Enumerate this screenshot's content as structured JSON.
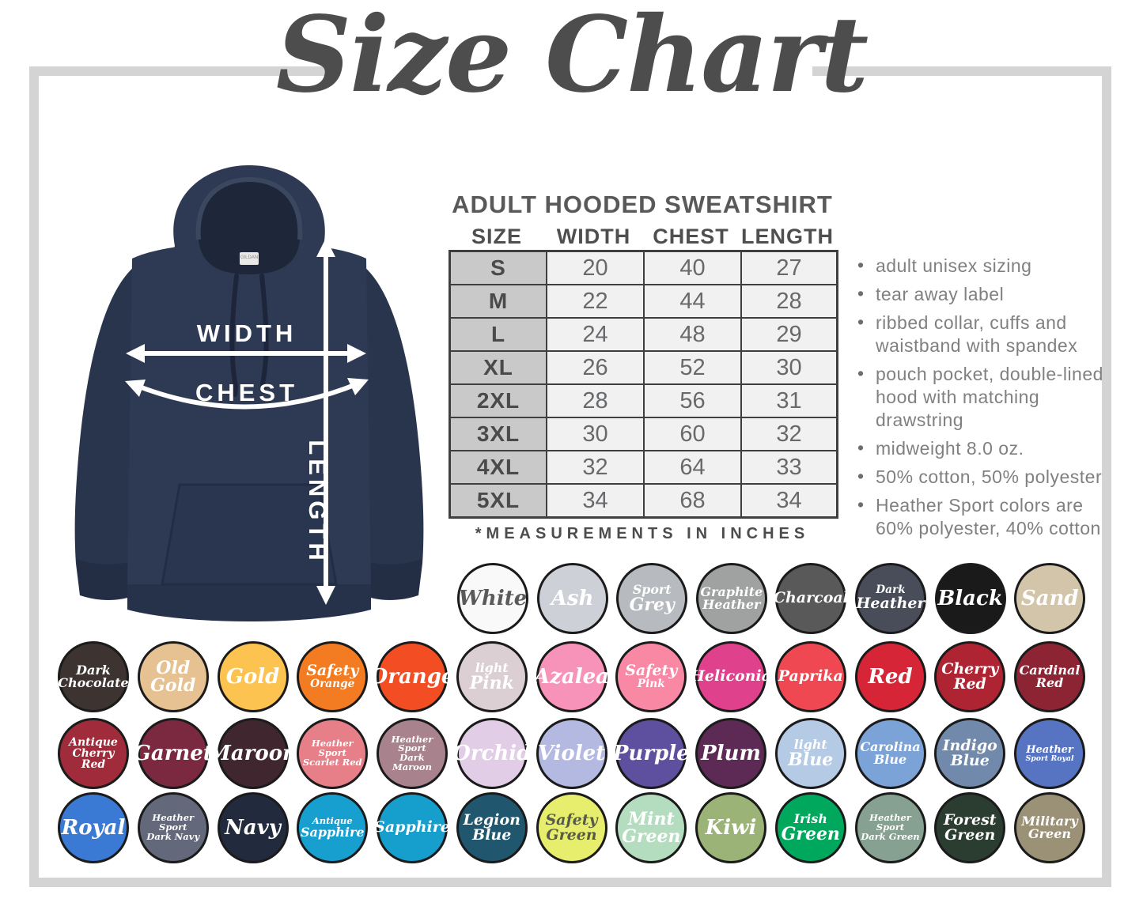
{
  "title": "Size Chart",
  "product": {
    "heading": "ADULT HOODED SWEATSHIRT",
    "note": "*MEASUREMENTS IN INCHES",
    "table": {
      "columns": [
        "SIZE",
        "WIDTH",
        "CHEST",
        "LENGTH"
      ],
      "rows": [
        [
          "S",
          "20",
          "40",
          "27"
        ],
        [
          "M",
          "22",
          "44",
          "28"
        ],
        [
          "L",
          "24",
          "48",
          "29"
        ],
        [
          "XL",
          "26",
          "52",
          "30"
        ],
        [
          "2XL",
          "28",
          "56",
          "31"
        ],
        [
          "3XL",
          "30",
          "60",
          "32"
        ],
        [
          "4XL",
          "32",
          "64",
          "33"
        ],
        [
          "5XL",
          "34",
          "68",
          "34"
        ]
      ]
    },
    "features": [
      "adult unisex sizing",
      "tear away label",
      "ribbed collar, cuffs and waistband with spandex",
      "pouch pocket, double-lined hood with matching drawstring",
      "midweight 8.0 oz.",
      "50% cotton, 50% polyester",
      "Heather Sport colors are 60% polyester, 40% cotton"
    ]
  },
  "diagram": {
    "width_label": "WIDTH",
    "chest_label": "CHEST",
    "length_label": "LENGTH",
    "tag": "GILDAN",
    "hoodie_color": "#2e3a53"
  },
  "swatch_rows": [
    [
      {
        "name": "White",
        "lines": [
          "White"
        ],
        "bg": "#f9f9f9",
        "fg": "#5a5a5a"
      },
      {
        "name": "Ash",
        "lines": [
          "Ash"
        ],
        "bg": "#cdd1d7",
        "fg": "#ffffff"
      },
      {
        "name": "Sport Grey",
        "lines": [
          "Sport",
          "Grey"
        ],
        "small": [
          0
        ],
        "bg": "#b7babf",
        "fg": "#ffffff"
      },
      {
        "name": "Graphite Heather",
        "lines": [
          "Graphite",
          "Heather"
        ],
        "bg": "#9fa2a1",
        "fg": "#ffffff"
      },
      {
        "name": "Charcoal",
        "lines": [
          "Charcoal"
        ],
        "bg": "#595959",
        "fg": "#ffffff"
      },
      {
        "name": "Dark Heather",
        "lines": [
          "Dark",
          "Heather"
        ],
        "small": [
          0
        ],
        "bg": "#484d59",
        "fg": "#ffffff"
      },
      {
        "name": "Black",
        "lines": [
          "Black"
        ],
        "bg": "#1a1a1a",
        "fg": "#ffffff"
      },
      {
        "name": "Sand",
        "lines": [
          "Sand"
        ],
        "bg": "#d3c5a9",
        "fg": "#ffffff"
      }
    ],
    [
      {
        "name": "Dark Chocolate",
        "lines": [
          "Dark",
          "Chocolate"
        ],
        "bg": "#3d3330",
        "fg": "#ffffff"
      },
      {
        "name": "Old Gold",
        "lines": [
          "Old",
          "Gold"
        ],
        "bg": "#e6c192",
        "fg": "#ffffff"
      },
      {
        "name": "Gold",
        "lines": [
          "Gold"
        ],
        "bg": "#fcc350",
        "fg": "#ffffff"
      },
      {
        "name": "Safety Orange",
        "lines": [
          "Safety",
          "Orange"
        ],
        "small": [
          1
        ],
        "bg": "#f37b21",
        "fg": "#ffffff"
      },
      {
        "name": "Orange",
        "lines": [
          "Orange"
        ],
        "bg": "#f34e23",
        "fg": "#ffffff"
      },
      {
        "name": "Light Pink",
        "lines": [
          "light",
          "Pink"
        ],
        "small": [
          0
        ],
        "bg": "#dccfd3",
        "fg": "#ffffff"
      },
      {
        "name": "Azalea",
        "lines": [
          "Azalea"
        ],
        "bg": "#f793b9",
        "fg": "#ffffff"
      },
      {
        "name": "Safety Pink",
        "lines": [
          "Safety",
          "Pink"
        ],
        "small": [
          1
        ],
        "bg": "#f988a5",
        "fg": "#ffffff"
      },
      {
        "name": "Heliconia",
        "lines": [
          "Heliconia"
        ],
        "bg": "#e0418d",
        "fg": "#ffffff"
      },
      {
        "name": "Paprika",
        "lines": [
          "Paprika"
        ],
        "bg": "#f04852",
        "fg": "#ffffff"
      },
      {
        "name": "Red",
        "lines": [
          "Red"
        ],
        "bg": "#d52536",
        "fg": "#ffffff"
      },
      {
        "name": "Cherry Red",
        "lines": [
          "Cherry",
          "Red"
        ],
        "bg": "#af2432",
        "fg": "#ffffff"
      },
      {
        "name": "Cardinal Red",
        "lines": [
          "Cardinal",
          "Red"
        ],
        "bg": "#8d2434",
        "fg": "#ffffff"
      }
    ],
    [
      {
        "name": "Antique Cherry Red",
        "lines": [
          "Antique",
          "Cherry",
          "Red"
        ],
        "bg": "#a02c3b",
        "fg": "#ffffff"
      },
      {
        "name": "Garnet",
        "lines": [
          "Garnet"
        ],
        "bg": "#7b2940",
        "fg": "#ffffff"
      },
      {
        "name": "Maroon",
        "lines": [
          "Maroon"
        ],
        "bg": "#40262e",
        "fg": "#ffffff"
      },
      {
        "name": "Heather Sport Scarlet Red",
        "lines": [
          "Heather Sport",
          "Scarlet Red"
        ],
        "bg": "#e67f88",
        "fg": "#ffffff"
      },
      {
        "name": "Heather Sport Dark Maroon",
        "lines": [
          "Heather Sport",
          "Dark Maroon"
        ],
        "bg": "#a8838d",
        "fg": "#ffffff"
      },
      {
        "name": "Orchid",
        "lines": [
          "Orchid"
        ],
        "bg": "#e2cde6",
        "fg": "#ffffff"
      },
      {
        "name": "Violet",
        "lines": [
          "Violet"
        ],
        "bg": "#b3b9e0",
        "fg": "#ffffff"
      },
      {
        "name": "Purple",
        "lines": [
          "Purple"
        ],
        "bg": "#5e4f9f",
        "fg": "#ffffff"
      },
      {
        "name": "Plum",
        "lines": [
          "Plum"
        ],
        "bg": "#5c2a54",
        "fg": "#ffffff"
      },
      {
        "name": "Light Blue",
        "lines": [
          "light",
          "Blue"
        ],
        "small": [
          0
        ],
        "bg": "#b5cbe5",
        "fg": "#ffffff"
      },
      {
        "name": "Carolina Blue",
        "lines": [
          "Carolina",
          "Blue"
        ],
        "bg": "#7ba3d8",
        "fg": "#ffffff"
      },
      {
        "name": "Indigo Blue",
        "lines": [
          "Indigo",
          "Blue"
        ],
        "bg": "#7189ab",
        "fg": "#ffffff"
      },
      {
        "name": "Heather Sport Royal",
        "lines": [
          "Heather",
          "Sport Royal"
        ],
        "small": [
          1
        ],
        "bg": "#5774c2",
        "fg": "#ffffff"
      }
    ],
    [
      {
        "name": "Royal",
        "lines": [
          "Royal"
        ],
        "bg": "#3a79d4",
        "fg": "#ffffff"
      },
      {
        "name": "Heather Sport Dark Navy",
        "lines": [
          "Heather Sport",
          "Dark Navy"
        ],
        "bg": "#63687b",
        "fg": "#ffffff"
      },
      {
        "name": "Navy",
        "lines": [
          "Navy"
        ],
        "bg": "#222a3d",
        "fg": "#ffffff"
      },
      {
        "name": "Antique Sapphire",
        "lines": [
          "Antique",
          "Sapphire"
        ],
        "small": [
          0
        ],
        "bg": "#17a0cf",
        "fg": "#ffffff"
      },
      {
        "name": "Sapphire",
        "lines": [
          "Sapphire"
        ],
        "bg": "#169ecc",
        "fg": "#ffffff"
      },
      {
        "name": "Legion Blue",
        "lines": [
          "Legion",
          "Blue"
        ],
        "bg": "#20576f",
        "fg": "#ffffff"
      },
      {
        "name": "Safety Green",
        "lines": [
          "Safety",
          "Green"
        ],
        "bg": "#e7ee6e",
        "fg": "#575a48"
      },
      {
        "name": "Mint Green",
        "lines": [
          "Mint",
          "Green"
        ],
        "bg": "#b4ddc0",
        "fg": "#ffffff"
      },
      {
        "name": "Kiwi",
        "lines": [
          "Kiwi"
        ],
        "bg": "#9bb377",
        "fg": "#ffffff"
      },
      {
        "name": "Irish Green",
        "lines": [
          "Irish",
          "Green"
        ],
        "small": [
          0
        ],
        "bg": "#00a85e",
        "fg": "#ffffff"
      },
      {
        "name": "Heather Sport Dark Green",
        "lines": [
          "Heather Sport",
          "Dark Green"
        ],
        "bg": "#86a092",
        "fg": "#ffffff"
      },
      {
        "name": "Forest Green",
        "lines": [
          "Forest",
          "Green"
        ],
        "bg": "#2b3d31",
        "fg": "#ffffff"
      },
      {
        "name": "Military Green",
        "lines": [
          "Military",
          "Green"
        ],
        "bg": "#9a9177",
        "fg": "#ffffff"
      }
    ]
  ]
}
